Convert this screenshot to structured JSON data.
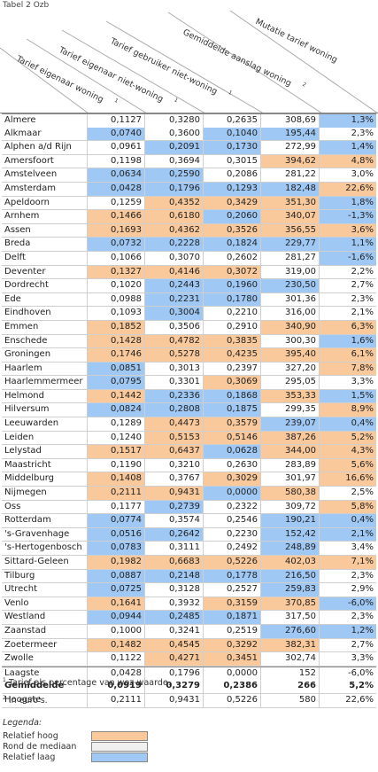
{
  "title": "Tabel 2 Ozb",
  "columns": [
    {
      "label": "Tarief eigenaar woning",
      "footnote": "1"
    },
    {
      "label": "Tarief eigenaar niet-woning",
      "footnote": "1"
    },
    {
      "label": "Tarief gebruiker niet-woning",
      "footnote": "1"
    },
    {
      "label": "Gemiddelde aanslag woning",
      "footnote": "2"
    },
    {
      "label": "Mutatie tarief woning",
      "footnote": ""
    }
  ],
  "rows": [
    {
      "name": "Almere",
      "values": [
        "0,1127",
        "0,3280",
        "0,2635",
        "308,69",
        "1,3%"
      ],
      "classes": [
        "n",
        "n",
        "n",
        "n",
        "l"
      ]
    },
    {
      "name": "Alkmaar",
      "values": [
        "0,0740",
        "0,3600",
        "0,1040",
        "195,44",
        "2,3%"
      ],
      "classes": [
        "l",
        "n",
        "l",
        "l",
        "n"
      ]
    },
    {
      "name": "Alphen a/d Rijn",
      "values": [
        "0,0961",
        "0,2091",
        "0,1730",
        "272,99",
        "1,4%"
      ],
      "classes": [
        "n",
        "l",
        "l",
        "n",
        "l"
      ]
    },
    {
      "name": "Amersfoort",
      "values": [
        "0,1198",
        "0,3694",
        "0,3015",
        "394,62",
        "4,8%"
      ],
      "classes": [
        "n",
        "n",
        "n",
        "h",
        "h"
      ]
    },
    {
      "name": "Amstelveen",
      "values": [
        "0,0634",
        "0,2590",
        "0,2086",
        "281,22",
        "3,0%"
      ],
      "classes": [
        "l",
        "l",
        "n",
        "n",
        "n"
      ]
    },
    {
      "name": "Amsterdam",
      "values": [
        "0,0428",
        "0,1796",
        "0,1293",
        "182,48",
        "22,6%"
      ],
      "classes": [
        "l",
        "l",
        "l",
        "l",
        "h"
      ]
    },
    {
      "name": "Apeldoorn",
      "values": [
        "0,1259",
        "0,4352",
        "0,3429",
        "351,30",
        "1,8%"
      ],
      "classes": [
        "n",
        "h",
        "h",
        "h",
        "l"
      ]
    },
    {
      "name": "Arnhem",
      "values": [
        "0,1466",
        "0,6180",
        "0,2060",
        "340,07",
        "-1,3%"
      ],
      "classes": [
        "h",
        "h",
        "l",
        "h",
        "l"
      ]
    },
    {
      "name": "Assen",
      "values": [
        "0,1693",
        "0,4362",
        "0,3526",
        "356,55",
        "3,6%"
      ],
      "classes": [
        "h",
        "h",
        "h",
        "h",
        "h"
      ]
    },
    {
      "name": "Breda",
      "values": [
        "0,0732",
        "0,2228",
        "0,1824",
        "229,77",
        "1,1%"
      ],
      "classes": [
        "l",
        "l",
        "l",
        "l",
        "l"
      ]
    },
    {
      "name": "Delft",
      "values": [
        "0,1066",
        "0,3070",
        "0,2602",
        "281,27",
        "-1,6%"
      ],
      "classes": [
        "n",
        "n",
        "n",
        "n",
        "l"
      ]
    },
    {
      "name": "Deventer",
      "values": [
        "0,1327",
        "0,4146",
        "0,3072",
        "319,00",
        "2,2%"
      ],
      "classes": [
        "h",
        "h",
        "h",
        "n",
        "n"
      ]
    },
    {
      "name": "Dordrecht",
      "values": [
        "0,1020",
        "0,2443",
        "0,1960",
        "230,50",
        "2,7%"
      ],
      "classes": [
        "n",
        "l",
        "l",
        "l",
        "n"
      ]
    },
    {
      "name": "Ede",
      "values": [
        "0,0988",
        "0,2231",
        "0,1780",
        "301,36",
        "2,3%"
      ],
      "classes": [
        "n",
        "l",
        "l",
        "n",
        "n"
      ]
    },
    {
      "name": "Eindhoven",
      "values": [
        "0,1093",
        "0,3004",
        "0,2210",
        "316,00",
        "2,1%"
      ],
      "classes": [
        "n",
        "l",
        "n",
        "n",
        "n"
      ]
    },
    {
      "name": "Emmen",
      "values": [
        "0,1852",
        "0,3506",
        "0,2910",
        "340,90",
        "6,3%"
      ],
      "classes": [
        "h",
        "n",
        "n",
        "h",
        "h"
      ]
    },
    {
      "name": "Enschede",
      "values": [
        "0,1428",
        "0,4782",
        "0,3835",
        "300,30",
        "1,6%"
      ],
      "classes": [
        "h",
        "h",
        "h",
        "n",
        "l"
      ]
    },
    {
      "name": "Groningen",
      "values": [
        "0,1746",
        "0,5278",
        "0,4235",
        "395,40",
        "6,1%"
      ],
      "classes": [
        "h",
        "h",
        "h",
        "h",
        "h"
      ]
    },
    {
      "name": "Haarlem",
      "values": [
        "0,0851",
        "0,3013",
        "0,2397",
        "327,20",
        "7,8%"
      ],
      "classes": [
        "l",
        "n",
        "n",
        "n",
        "h"
      ]
    },
    {
      "name": "Haarlemmermeer",
      "values": [
        "0,0795",
        "0,3301",
        "0,3069",
        "295,05",
        "3,3%"
      ],
      "classes": [
        "l",
        "n",
        "h",
        "n",
        "n"
      ]
    },
    {
      "name": "Helmond",
      "values": [
        "0,1442",
        "0,2336",
        "0,1868",
        "353,33",
        "1,5%"
      ],
      "classes": [
        "h",
        "l",
        "l",
        "h",
        "l"
      ]
    },
    {
      "name": "Hilversum",
      "values": [
        "0,0824",
        "0,2808",
        "0,1875",
        "299,35",
        "8,9%"
      ],
      "classes": [
        "l",
        "l",
        "l",
        "n",
        "h"
      ]
    },
    {
      "name": "Leeuwarden",
      "values": [
        "0,1289",
        "0,4473",
        "0,3579",
        "239,07",
        "0,4%"
      ],
      "classes": [
        "n",
        "h",
        "h",
        "l",
        "l"
      ]
    },
    {
      "name": "Leiden",
      "values": [
        "0,1240",
        "0,5153",
        "0,5146",
        "387,26",
        "5,2%"
      ],
      "classes": [
        "n",
        "h",
        "h",
        "h",
        "h"
      ]
    },
    {
      "name": "Lelystad",
      "values": [
        "0,1517",
        "0,6437",
        "0,0628",
        "344,00",
        "4,3%"
      ],
      "classes": [
        "h",
        "h",
        "l",
        "h",
        "h"
      ]
    },
    {
      "name": "Maastricht",
      "values": [
        "0,1190",
        "0,3210",
        "0,2630",
        "283,89",
        "5,6%"
      ],
      "classes": [
        "n",
        "n",
        "n",
        "n",
        "h"
      ]
    },
    {
      "name": "Middelburg",
      "values": [
        "0,1408",
        "0,3767",
        "0,3029",
        "301,97",
        "16,6%"
      ],
      "classes": [
        "h",
        "n",
        "h",
        "n",
        "h"
      ]
    },
    {
      "name": "Nijmegen",
      "values": [
        "0,2111",
        "0,9431",
        "0,0000",
        "580,38",
        "2,5%"
      ],
      "classes": [
        "h",
        "h",
        "l",
        "h",
        "n"
      ]
    },
    {
      "name": "Oss",
      "values": [
        "0,1177",
        "0,2739",
        "0,2322",
        "309,72",
        "5,8%"
      ],
      "classes": [
        "n",
        "l",
        "n",
        "n",
        "h"
      ]
    },
    {
      "name": "Rotterdam",
      "values": [
        "0,0774",
        "0,3574",
        "0,2546",
        "190,21",
        "0,4%"
      ],
      "classes": [
        "l",
        "n",
        "n",
        "l",
        "l"
      ]
    },
    {
      "name": "'s-Gravenhage",
      "values": [
        "0,0516",
        "0,2642",
        "0,2230",
        "152,42",
        "2,1%"
      ],
      "classes": [
        "l",
        "l",
        "n",
        "l",
        "l"
      ]
    },
    {
      "name": "'s-Hertogenbosch",
      "values": [
        "0,0783",
        "0,3111",
        "0,2492",
        "248,89",
        "3,4%"
      ],
      "classes": [
        "l",
        "n",
        "n",
        "l",
        "n"
      ]
    },
    {
      "name": "Sittard-Geleen",
      "values": [
        "0,1982",
        "0,6683",
        "0,5226",
        "402,03",
        "7,1%"
      ],
      "classes": [
        "h",
        "h",
        "h",
        "h",
        "h"
      ]
    },
    {
      "name": "Tilburg",
      "values": [
        "0,0887",
        "0,2148",
        "0,1778",
        "216,50",
        "2,3%"
      ],
      "classes": [
        "l",
        "l",
        "l",
        "l",
        "n"
      ]
    },
    {
      "name": "Utrecht",
      "values": [
        "0,0725",
        "0,3128",
        "0,2527",
        "259,83",
        "2,9%"
      ],
      "classes": [
        "l",
        "n",
        "n",
        "l",
        "n"
      ]
    },
    {
      "name": "Venlo",
      "values": [
        "0,1641",
        "0,3932",
        "0,3159",
        "370,85",
        "-6,0%"
      ],
      "classes": [
        "h",
        "n",
        "h",
        "h",
        "l"
      ]
    },
    {
      "name": "Westland",
      "values": [
        "0,0944",
        "0,2485",
        "0,1871",
        "317,50",
        "2,3%"
      ],
      "classes": [
        "l",
        "l",
        "l",
        "n",
        "n"
      ]
    },
    {
      "name": "Zaanstad",
      "values": [
        "0,1000",
        "0,3241",
        "0,2519",
        "276,60",
        "1,2%"
      ],
      "classes": [
        "n",
        "n",
        "n",
        "l",
        "l"
      ]
    },
    {
      "name": "Zoetermeer",
      "values": [
        "0,1482",
        "0,4545",
        "0,3292",
        "382,31",
        "2,7%"
      ],
      "classes": [
        "h",
        "h",
        "h",
        "h",
        "n"
      ]
    },
    {
      "name": "Zwolle",
      "values": [
        "0,1122",
        "0,4271",
        "0,3451",
        "302,74",
        "3,3%"
      ],
      "classes": [
        "n",
        "h",
        "h",
        "n",
        "n"
      ]
    }
  ],
  "summary": [
    {
      "name": "Laagste",
      "values": [
        "0,0428",
        "0,1796",
        "0,0000",
        "152",
        "-6,0%"
      ],
      "bold": false
    },
    {
      "name": "Gemiddelde",
      "values": [
        "0,0919",
        "0,3279",
        "0,2386",
        "266",
        "5,2%"
      ],
      "bold": true
    },
    {
      "name": "Hoogste",
      "values": [
        "0,2111",
        "0,9431",
        "0,5226",
        "580",
        "22,6%"
      ],
      "bold": false
    }
  ],
  "notes": [
    {
      "mark": "1",
      "text": "Tarief als percentage van woz-waarde."
    },
    {
      "mark": "2",
      "text": "In euro's."
    }
  ],
  "legend": {
    "title": "Legenda:",
    "items": [
      {
        "label": "Relatief hoog",
        "color": "#f9c89b"
      },
      {
        "label": "Rond de mediaan",
        "color": "#f0f0f0"
      },
      {
        "label": "Relatief laag",
        "color": "#9fc8f5"
      }
    ]
  },
  "colors": {
    "high": "#f9c89b",
    "median": "#f0f0f0",
    "low": "#9fc8f5"
  }
}
